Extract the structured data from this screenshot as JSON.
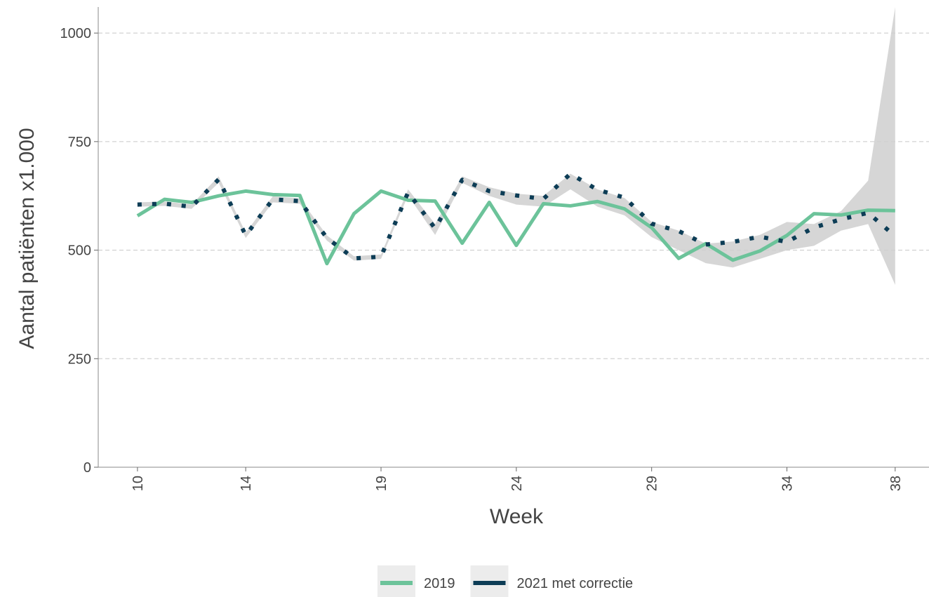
{
  "chart_data": {
    "type": "line",
    "x_label": "Week",
    "y_label": "Aantal patiënten x1.000",
    "x": [
      10,
      11,
      12,
      13,
      14,
      15,
      16,
      17,
      18,
      19,
      20,
      21,
      22,
      23,
      24,
      25,
      26,
      27,
      28,
      29,
      30,
      31,
      32,
      33,
      34,
      35,
      36,
      37,
      38
    ],
    "series": [
      {
        "name": "2019",
        "color": "#6cc39a",
        "style": "solid",
        "values": [
          579,
          617,
          610,
          625,
          636,
          628,
          626,
          469,
          584,
          636,
          615,
          613,
          516,
          610,
          511,
          607,
          602,
          612,
          595,
          552,
          481,
          515,
          477,
          498,
          534,
          584,
          581,
          592,
          591
        ]
      },
      {
        "name": "2021 met correctie",
        "color": "#0d3d56",
        "style": "dotted",
        "values": [
          605,
          607,
          600,
          663,
          534,
          617,
          613,
          528,
          481,
          485,
          633,
          550,
          662,
          636,
          626,
          618,
          676,
          639,
          621,
          561,
          544,
          513,
          519,
          531,
          519,
          552,
          571,
          586,
          532
        ],
        "band": {
          "color": "#cfcfcf",
          "lower": [
            600,
            602,
            595,
            655,
            528,
            610,
            607,
            522,
            476,
            480,
            626,
            535,
            655,
            625,
            605,
            600,
            640,
            600,
            580,
            530,
            500,
            470,
            460,
            480,
            500,
            510,
            545,
            560,
            420
          ],
          "upper": [
            610,
            612,
            605,
            670,
            540,
            624,
            619,
            534,
            486,
            490,
            640,
            560,
            670,
            645,
            630,
            625,
            676,
            640,
            620,
            565,
            545,
            515,
            520,
            535,
            565,
            560,
            590,
            660,
            1060
          ]
        }
      }
    ],
    "xlim": [
      8.55,
      39.25
    ],
    "ylim": [
      0,
      1060
    ],
    "xticks": [
      10,
      14,
      19,
      24,
      29,
      34,
      38
    ],
    "yticks": [
      0,
      250,
      500,
      750,
      1000
    ],
    "grid": true,
    "legend": "bottom"
  }
}
